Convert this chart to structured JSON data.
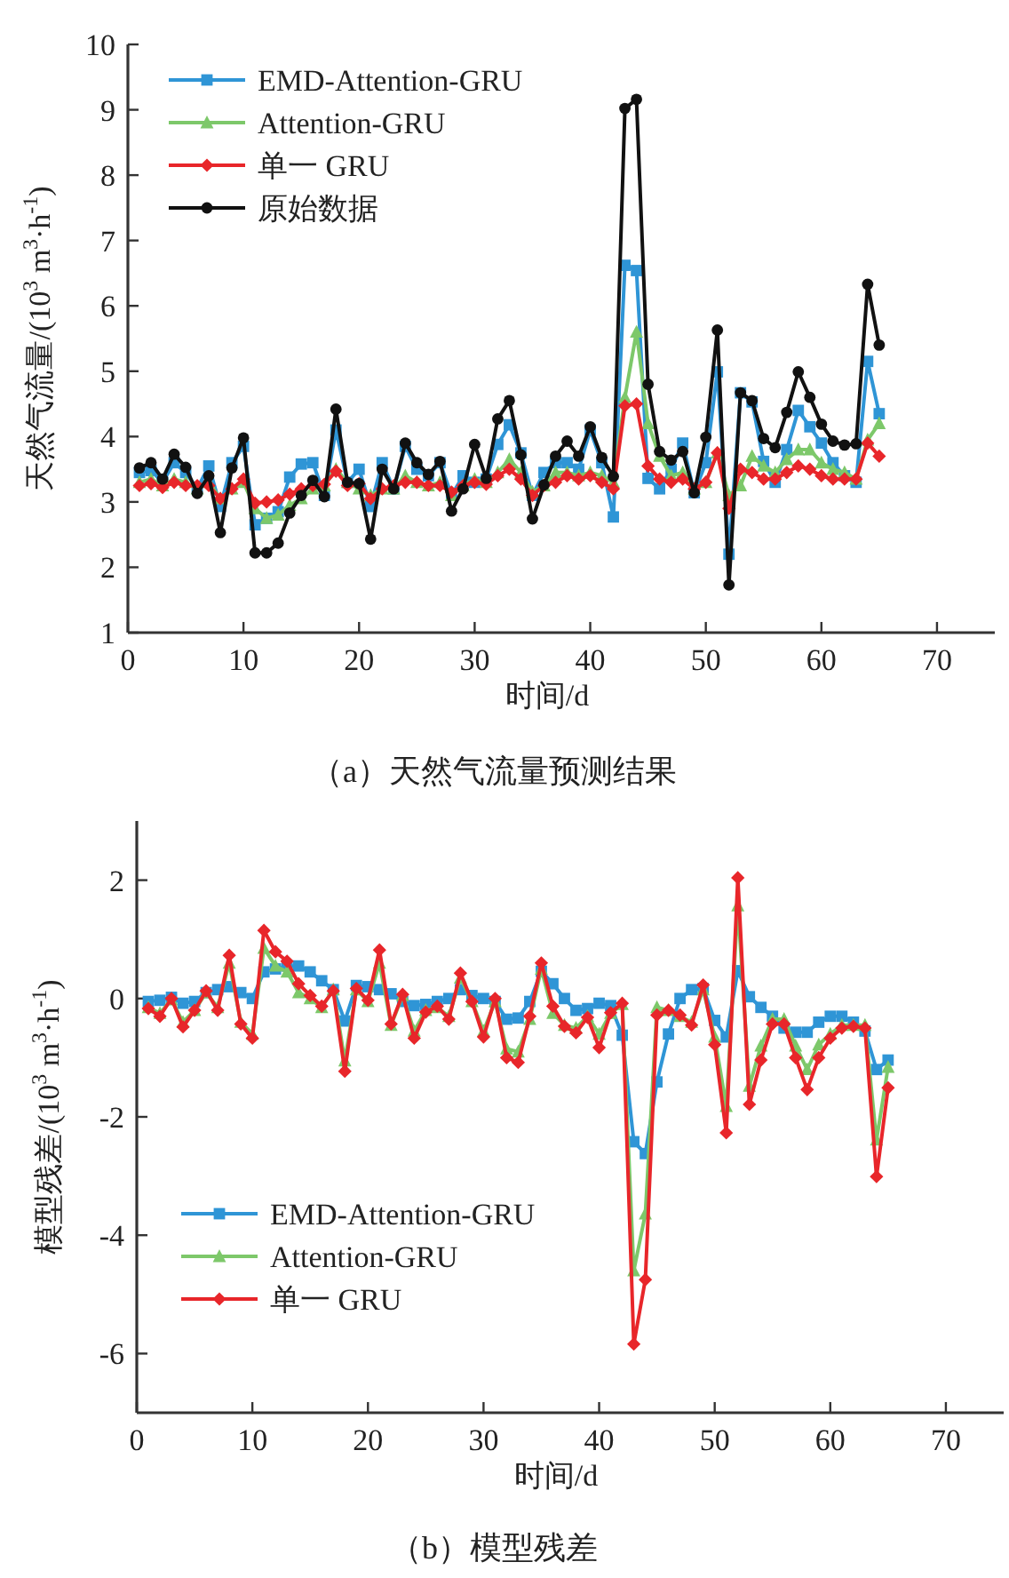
{
  "chart_data": [
    {
      "type": "line",
      "xlabel": "时间/d",
      "ylabel": "天然气流量/(10$^{3}$ m$^{3}$·h$^{-1}$)",
      "annotations": [
        "（a）天然气流量预测结果"
      ],
      "legend": "top left",
      "xlim": [
        0,
        75
      ],
      "ylim": [
        1,
        10
      ],
      "xticks": [
        0,
        10,
        20,
        30,
        40,
        50,
        60,
        70
      ],
      "yticks": [
        1,
        2,
        3,
        4,
        5,
        6,
        7,
        8,
        9,
        10
      ],
      "x": [
        1,
        2,
        3,
        4,
        5,
        6,
        7,
        8,
        9,
        10,
        11,
        12,
        13,
        14,
        15,
        16,
        17,
        18,
        19,
        20,
        21,
        22,
        23,
        24,
        25,
        26,
        27,
        28,
        29,
        30,
        31,
        32,
        33,
        34,
        35,
        36,
        37,
        38,
        39,
        40,
        41,
        42,
        43,
        44,
        45,
        46,
        47,
        48,
        49,
        50,
        51,
        52,
        53,
        54,
        55,
        56,
        57,
        58,
        59,
        60,
        61,
        62,
        63,
        64,
        65
      ],
      "series": [
        {
          "name": "EMD-Attention-GRU",
          "color": "#2f95d6",
          "marker": "square",
          "values": [
            3.45,
            3.48,
            3.3,
            3.6,
            3.45,
            3.2,
            3.55,
            2.93,
            3.6,
            3.85,
            2.65,
            2.75,
            2.85,
            3.38,
            3.58,
            3.6,
            3.1,
            4.1,
            3.3,
            3.5,
            2.93,
            3.6,
            3.2,
            3.85,
            3.5,
            3.4,
            3.6,
            3.1,
            3.4,
            3.3,
            3.35,
            3.88,
            4.18,
            3.75,
            3.1,
            3.45,
            3.6,
            3.6,
            3.5,
            4.1,
            3.6,
            2.77,
            6.62,
            6.54,
            3.36,
            3.2,
            3.5,
            3.9,
            3.14,
            3.6,
            4.99,
            2.2,
            4.67,
            4.53,
            3.62,
            3.3,
            3.8,
            4.4,
            4.15,
            3.9,
            3.6,
            3.4,
            3.3,
            5.15,
            4.35
          ]
        },
        {
          "name": "Attention-GRU",
          "color": "#7dc86a",
          "marker": "triangle",
          "values": [
            3.3,
            3.35,
            3.25,
            3.35,
            3.3,
            3.2,
            3.3,
            3.05,
            3.2,
            3.3,
            2.9,
            2.75,
            2.8,
            2.95,
            3.05,
            3.2,
            3.25,
            3.5,
            3.3,
            3.2,
            3.1,
            3.2,
            3.2,
            3.4,
            3.3,
            3.25,
            3.3,
            3.1,
            3.25,
            3.35,
            3.3,
            3.45,
            3.65,
            3.45,
            3.15,
            3.25,
            3.45,
            3.45,
            3.4,
            3.45,
            3.4,
            3.3,
            4.6,
            5.6,
            4.2,
            3.7,
            3.4,
            3.45,
            3.2,
            3.3,
            3.75,
            3.1,
            3.25,
            3.7,
            3.55,
            3.45,
            3.65,
            3.8,
            3.8,
            3.6,
            3.5,
            3.45,
            3.35,
            3.95,
            4.2
          ]
        },
        {
          "name": "单一 GRU",
          "color": "#e8262a",
          "marker": "diamond",
          "values": [
            3.25,
            3.28,
            3.22,
            3.3,
            3.25,
            3.25,
            3.25,
            3.05,
            3.2,
            3.35,
            2.98,
            3.0,
            3.03,
            3.12,
            3.2,
            3.25,
            3.27,
            3.47,
            3.25,
            3.28,
            3.05,
            3.2,
            3.25,
            3.3,
            3.3,
            3.25,
            3.25,
            3.15,
            3.25,
            3.3,
            3.27,
            3.4,
            3.5,
            3.35,
            3.1,
            3.25,
            3.3,
            3.4,
            3.35,
            3.4,
            3.3,
            3.2,
            4.47,
            4.5,
            3.55,
            3.35,
            3.3,
            3.35,
            3.2,
            3.3,
            3.75,
            2.9,
            3.5,
            3.45,
            3.35,
            3.35,
            3.45,
            3.55,
            3.5,
            3.4,
            3.35,
            3.35,
            3.35,
            3.9,
            3.7
          ]
        },
        {
          "name": "原始数据",
          "color": "#111111",
          "marker": "circle",
          "values": [
            3.52,
            3.6,
            3.35,
            3.73,
            3.53,
            3.13,
            3.4,
            2.53,
            3.52,
            3.98,
            2.22,
            2.22,
            2.37,
            2.83,
            3.1,
            3.33,
            3.08,
            4.42,
            3.3,
            3.28,
            2.43,
            3.5,
            3.2,
            3.9,
            3.6,
            3.42,
            3.62,
            2.86,
            3.2,
            3.88,
            3.36,
            4.27,
            4.55,
            3.72,
            2.74,
            3.26,
            3.7,
            3.93,
            3.7,
            4.15,
            3.68,
            3.39,
            9.02,
            9.16,
            4.8,
            3.77,
            3.64,
            3.77,
            3.14,
            3.99,
            5.63,
            1.73,
            4.67,
            4.55,
            3.97,
            3.83,
            4.37,
            4.99,
            4.6,
            4.19,
            3.93,
            3.87,
            3.89,
            6.33,
            5.4
          ]
        }
      ]
    },
    {
      "type": "line",
      "xlabel": "时间/d",
      "ylabel": "模型残差/(10$^{3}$ m$^{3}$·h$^{-1}$)",
      "annotations": [
        "（b）模型残差"
      ],
      "legend": "bottom left",
      "xlim": [
        0,
        75
      ],
      "ylim": [
        -7,
        3
      ],
      "xticks": [
        0,
        10,
        20,
        30,
        40,
        50,
        60,
        70
      ],
      "yticks": [
        -6,
        -4,
        -2,
        0,
        2
      ],
      "x": [
        1,
        2,
        3,
        4,
        5,
        6,
        7,
        8,
        9,
        10,
        11,
        12,
        13,
        14,
        15,
        16,
        17,
        18,
        19,
        20,
        21,
        22,
        23,
        24,
        25,
        26,
        27,
        28,
        29,
        30,
        31,
        32,
        33,
        34,
        35,
        36,
        37,
        38,
        39,
        40,
        41,
        42,
        43,
        44,
        45,
        46,
        47,
        48,
        49,
        50,
        51,
        52,
        53,
        54,
        55,
        56,
        57,
        58,
        59,
        60,
        61,
        62,
        63,
        64,
        65
      ],
      "series": [
        {
          "name": "EMD-Attention-GRU",
          "color": "#2f95d6",
          "marker": "square",
          "values": [
            -0.05,
            -0.03,
            0.02,
            -0.08,
            -0.05,
            0.1,
            0.15,
            0.2,
            0.1,
            0.0,
            0.45,
            0.5,
            0.55,
            0.55,
            0.45,
            0.3,
            0.15,
            -0.38,
            0.22,
            0.2,
            0.15,
            0.08,
            -0.05,
            -0.12,
            -0.1,
            -0.05,
            0.0,
            0.15,
            0.05,
            0.0,
            -0.05,
            -0.35,
            -0.33,
            -0.05,
            0.46,
            0.25,
            0.0,
            -0.2,
            -0.17,
            -0.08,
            -0.12,
            -0.62,
            -2.42,
            -2.62,
            -1.41,
            -0.6,
            0.0,
            0.15,
            0.17,
            -0.37,
            -0.65,
            0.47,
            0.03,
            -0.15,
            -0.3,
            -0.5,
            -0.57,
            -0.57,
            -0.4,
            -0.3,
            -0.3,
            -0.4,
            -0.55,
            -1.2,
            -1.04
          ]
        },
        {
          "name": "Attention-GRU",
          "color": "#7dc86a",
          "marker": "triangle",
          "values": [
            -0.15,
            -0.25,
            -0.02,
            -0.4,
            -0.2,
            0.1,
            -0.15,
            0.6,
            -0.4,
            -0.6,
            0.85,
            0.55,
            0.45,
            0.1,
            0.0,
            -0.15,
            0.15,
            -1.05,
            0.15,
            -0.05,
            0.6,
            -0.45,
            0.05,
            -0.55,
            -0.2,
            -0.15,
            -0.3,
            0.35,
            -0.05,
            -0.55,
            -0.05,
            -0.85,
            -0.9,
            -0.35,
            0.5,
            -0.25,
            -0.45,
            -0.5,
            -0.3,
            -0.6,
            -0.25,
            -0.1,
            -4.6,
            -3.64,
            -0.15,
            -0.2,
            -0.3,
            -0.4,
            0.15,
            -0.65,
            -1.82,
            1.57,
            -1.48,
            -0.8,
            -0.35,
            -0.35,
            -0.8,
            -1.2,
            -0.78,
            -0.6,
            -0.45,
            -0.45,
            -0.45,
            -2.39,
            -1.16
          ]
        },
        {
          "name": "单一 GRU",
          "color": "#e8262a",
          "marker": "diamond",
          "values": [
            -0.17,
            -0.3,
            0.0,
            -0.48,
            -0.2,
            0.13,
            -0.2,
            0.73,
            -0.43,
            -0.67,
            1.15,
            0.79,
            0.63,
            0.25,
            0.05,
            -0.13,
            0.13,
            -1.23,
            0.17,
            -0.03,
            0.82,
            -0.43,
            0.07,
            -0.67,
            -0.23,
            -0.13,
            -0.35,
            0.43,
            -0.05,
            -0.65,
            0.0,
            -1.0,
            -1.08,
            -0.3,
            0.6,
            -0.13,
            -0.47,
            -0.58,
            -0.32,
            -0.83,
            -0.24,
            -0.08,
            -5.84,
            -4.75,
            -0.28,
            -0.2,
            -0.28,
            -0.45,
            0.23,
            -0.78,
            -2.27,
            2.04,
            -1.79,
            -1.04,
            -0.43,
            -0.43,
            -1.0,
            -1.54,
            -1.0,
            -0.67,
            -0.5,
            -0.47,
            -0.5,
            -3.01,
            -1.51
          ]
        }
      ]
    }
  ]
}
